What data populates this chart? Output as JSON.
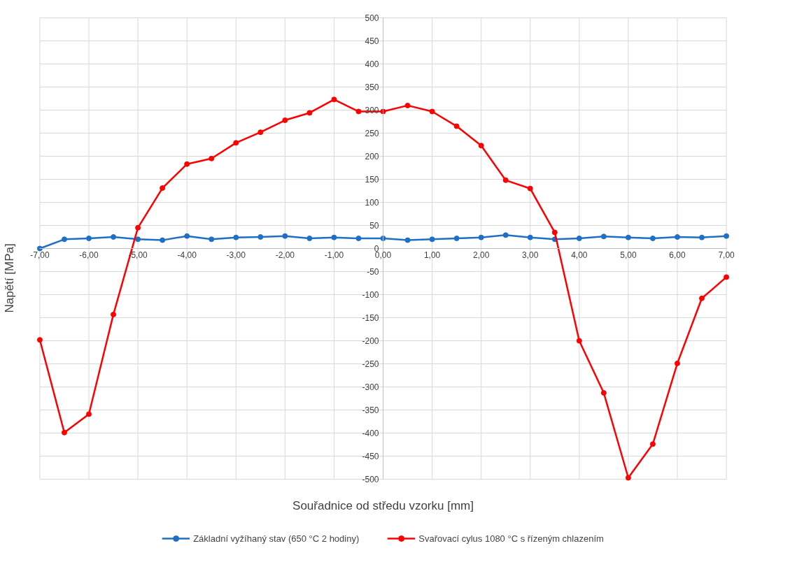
{
  "chart_data": {
    "type": "line",
    "xlabel": "Souřadnice od středu vzorku [mm]",
    "ylabel": "Napětí  [MPa]",
    "x": [
      -7,
      -6.5,
      -6,
      -5.5,
      -5,
      -4.5,
      -4,
      -3.5,
      -3,
      -2.5,
      -2,
      -1.5,
      -1,
      -0.5,
      0,
      0.5,
      1,
      1.5,
      2,
      2.5,
      3,
      3.5,
      4,
      4.5,
      5,
      5.5,
      6,
      6.5,
      7
    ],
    "series": [
      {
        "name": "Základní vyžíhaný stav (650 °C 2 hodiny)",
        "color": "#1f6fc5",
        "values": [
          0,
          20,
          22,
          25,
          20,
          18,
          27,
          20,
          24,
          25,
          27,
          22,
          24,
          22,
          22,
          18,
          20,
          22,
          24,
          29,
          24,
          20,
          22,
          26,
          24,
          22,
          25,
          24,
          27
        ]
      },
      {
        "name": "Svařovací cylus 1080 °C s řízeným chlazením",
        "color": "#ff0000",
        "values": [
          -198,
          -399,
          -359,
          -143,
          45,
          131,
          183,
          195,
          229,
          252,
          278,
          294,
          323,
          297,
          297,
          310,
          297,
          265,
          223,
          148,
          130,
          35,
          -200,
          -313,
          -497,
          -424,
          -249,
          -108,
          -62
        ]
      }
    ],
    "xlim": [
      -7,
      7
    ],
    "ylim": [
      -500,
      500
    ],
    "xticks": [
      {
        "value": -7,
        "label": "-7,00"
      },
      {
        "value": -6,
        "label": "-6,00"
      },
      {
        "value": -5,
        "label": "-5,00"
      },
      {
        "value": -4,
        "label": "-4,00"
      },
      {
        "value": -3,
        "label": "-3,00"
      },
      {
        "value": -2,
        "label": "-2,00"
      },
      {
        "value": -1,
        "label": "-1,00"
      },
      {
        "value": 0,
        "label": "0,00"
      },
      {
        "value": 1,
        "label": "1,00"
      },
      {
        "value": 2,
        "label": "2,00"
      },
      {
        "value": 3,
        "label": "3,00"
      },
      {
        "value": 4,
        "label": "4,00"
      },
      {
        "value": 5,
        "label": "5,00"
      },
      {
        "value": 6,
        "label": "6,00"
      },
      {
        "value": 7,
        "label": "7,00"
      }
    ],
    "yticks": [
      -500,
      -450,
      -400,
      -350,
      -300,
      -250,
      -200,
      -150,
      -100,
      -50,
      0,
      50,
      100,
      150,
      200,
      250,
      300,
      350,
      400,
      450,
      500
    ],
    "grid": true,
    "legend": "bottom",
    "marker": "circle",
    "line_style": "solid"
  }
}
